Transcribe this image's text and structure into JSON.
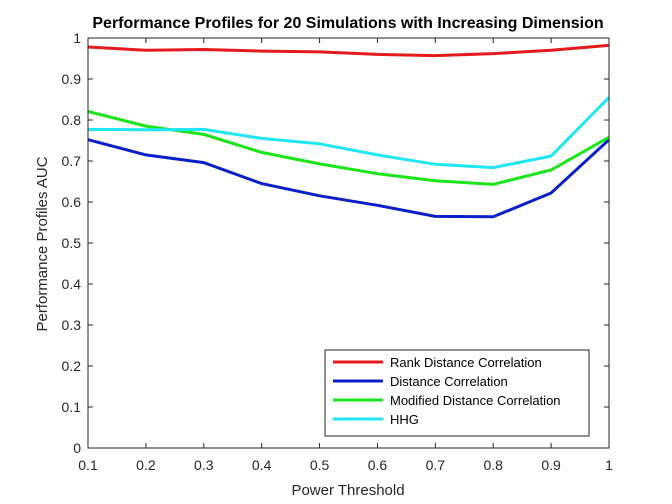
{
  "chart_data": {
    "type": "line",
    "title": "Performance Profiles for 20 Simulations with Increasing Dimension",
    "xlabel": "Power Threshold",
    "ylabel": "Performance Profiles AUC",
    "xlim": [
      0.1,
      1
    ],
    "ylim": [
      0,
      1
    ],
    "x": [
      0.1,
      0.2,
      0.3,
      0.4,
      0.5,
      0.6,
      0.7,
      0.8,
      0.9,
      1.0
    ],
    "xticks": [
      "0.1",
      "0.2",
      "0.3",
      "0.4",
      "0.5",
      "0.6",
      "0.7",
      "0.8",
      "0.9",
      "1"
    ],
    "yticks": [
      "0",
      "0.1",
      "0.2",
      "0.3",
      "0.4",
      "0.5",
      "0.6",
      "0.7",
      "0.8",
      "0.9",
      "1"
    ],
    "grid": false,
    "legend_position": "bottom-right",
    "series": [
      {
        "name": "Rank Distance Correlation",
        "color": "#e41a1c",
        "values": [
          0.978,
          0.97,
          0.972,
          0.968,
          0.966,
          0.96,
          0.957,
          0.962,
          0.97,
          0.982
        ]
      },
      {
        "name": "Distance Correlation",
        "color": "#0a1fc9",
        "values": [
          0.752,
          0.715,
          0.696,
          0.645,
          0.615,
          0.592,
          0.565,
          0.564,
          0.622,
          0.752
        ]
      },
      {
        "name": "Modified Distance Correlation",
        "color": "#19e619",
        "values": [
          0.821,
          0.785,
          0.765,
          0.721,
          0.693,
          0.669,
          0.652,
          0.643,
          0.678,
          0.758
        ]
      },
      {
        "name": "HHG",
        "color": "#1ee6f2",
        "values": [
          0.777,
          0.776,
          0.777,
          0.755,
          0.742,
          0.715,
          0.692,
          0.684,
          0.712,
          0.855
        ]
      }
    ]
  }
}
